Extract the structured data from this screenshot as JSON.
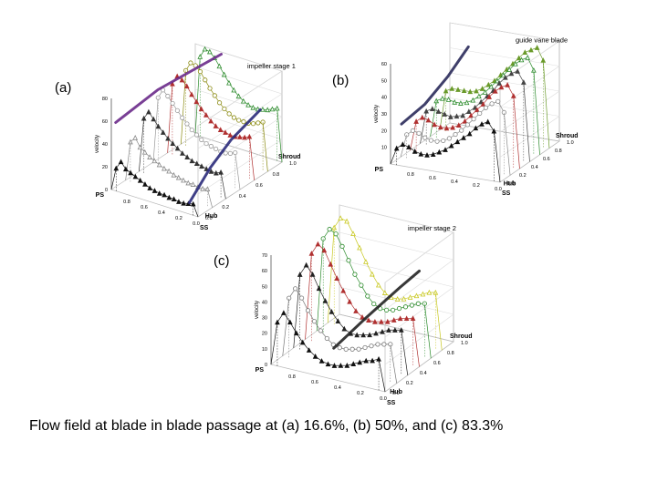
{
  "caption": "Flow field at blade in blade passage at (a) 16.6%, (b) 50%, and (c) 83.3%",
  "chart_data": [
    {
      "type": "line",
      "panel_label": "(a)",
      "title": "impeller stage 1",
      "zlabel": "velocity",
      "z_ticks": [
        "0",
        "20",
        "40",
        "60",
        "80"
      ],
      "x_ticks": [
        "0.8",
        "0.6",
        "0.4",
        "0.2",
        "0.0"
      ],
      "x_end_labels": [
        "PS",
        "SS"
      ],
      "y_ticks": [
        "1.0",
        "0.8",
        "0.6",
        "0.4",
        "0.2",
        "0.0"
      ],
      "y_end_labels": [
        "Shroud",
        "Hub"
      ],
      "zlim": [
        0,
        80
      ],
      "series": [
        {
          "depth": 0.0,
          "color": "#111111",
          "marker": "triangle",
          "values": [
            0,
            20,
            27,
            22,
            20,
            18,
            16,
            14,
            12,
            11,
            10,
            10,
            9,
            9,
            8,
            8,
            9,
            10,
            0
          ]
        },
        {
          "depth": 0.17,
          "color": "#888888",
          "marker": "triangle-open",
          "values": [
            0,
            35,
            40,
            33,
            30,
            27,
            25,
            23,
            21,
            20,
            18,
            17,
            16,
            15,
            15,
            14,
            14,
            15,
            0
          ]
        },
        {
          "depth": 0.33,
          "color": "#333333",
          "marker": "triangle",
          "values": [
            0,
            48,
            55,
            50,
            45,
            41,
            37,
            34,
            31,
            28,
            26,
            24,
            23,
            22,
            21,
            20,
            20,
            22,
            0
          ]
        },
        {
          "depth": 0.5,
          "color": "#999999",
          "marker": "circle-open",
          "values": [
            0,
            58,
            66,
            62,
            57,
            52,
            47,
            43,
            39,
            36,
            33,
            31,
            30,
            29,
            28,
            28,
            29,
            31,
            0
          ]
        },
        {
          "depth": 0.67,
          "color": "#b03030",
          "marker": "triangle",
          "values": [
            0,
            62,
            70,
            68,
            64,
            58,
            53,
            48,
            44,
            40,
            37,
            35,
            34,
            33,
            33,
            34,
            35,
            37,
            0
          ]
        },
        {
          "depth": 0.83,
          "color": "#8a8a10",
          "marker": "circle-open",
          "values": [
            0,
            66,
            74,
            73,
            69,
            63,
            57,
            52,
            47,
            43,
            40,
            38,
            37,
            37,
            37,
            38,
            40,
            42,
            0
          ]
        },
        {
          "depth": 1.0,
          "color": "#2a8a2a",
          "marker": "triangle-open",
          "values": [
            0,
            70,
            78,
            77,
            73,
            67,
            61,
            55,
            50,
            46,
            43,
            41,
            40,
            40,
            41,
            42,
            44,
            46,
            0
          ]
        }
      ],
      "highlights": [
        {
          "color": "#6a2a8a",
          "points": [
            [
              0.95,
              0.0,
              60
            ],
            [
              0.85,
              0.4,
              72
            ],
            [
              0.75,
              0.8,
              76
            ],
            [
              0.7,
              1.0,
              78
            ]
          ]
        },
        {
          "color": "#2a2a7a",
          "points": [
            [
              0.1,
              0.0,
              10
            ],
            [
              0.15,
              0.3,
              25
            ],
            [
              0.2,
              0.6,
              34
            ],
            [
              0.25,
              1.0,
              40
            ]
          ]
        }
      ]
    },
    {
      "type": "line",
      "panel_label": "(b)",
      "title": "guide vane blade",
      "zlabel": "velocity",
      "z_ticks": [
        "10",
        "20",
        "30",
        "40",
        "50",
        "60"
      ],
      "x_ticks": [
        "0.8",
        "0.6",
        "0.4",
        "0.2",
        "0.0"
      ],
      "x_end_labels": [
        "PS",
        "SS"
      ],
      "y_ticks": [
        "1.0",
        "0.8",
        "0.6",
        "0.4",
        "0.2",
        "0.0"
      ],
      "y_end_labels": [
        "Shroud",
        "Hub"
      ],
      "zlim": [
        0,
        60
      ],
      "series": [
        {
          "depth": 0.0,
          "color": "#111111",
          "marker": "triangle",
          "values": [
            0,
            10,
            13,
            12,
            10,
            9,
            9,
            10,
            12,
            14,
            17,
            20,
            23,
            26,
            30,
            33,
            35,
            30,
            0
          ]
        },
        {
          "depth": 0.17,
          "color": "#888888",
          "marker": "circle-open",
          "values": [
            0,
            14,
            17,
            16,
            14,
            13,
            13,
            14,
            16,
            19,
            22,
            26,
            30,
            34,
            38,
            41,
            43,
            37,
            0
          ]
        },
        {
          "depth": 0.33,
          "color": "#b03030",
          "marker": "triangle",
          "values": [
            0,
            18,
            21,
            20,
            18,
            17,
            17,
            18,
            20,
            23,
            27,
            31,
            35,
            40,
            44,
            47,
            49,
            43,
            0
          ]
        },
        {
          "depth": 0.5,
          "color": "#444444",
          "marker": "triangle",
          "values": [
            0,
            20,
            22,
            21,
            20,
            19,
            20,
            21,
            24,
            27,
            31,
            35,
            39,
            44,
            48,
            51,
            53,
            47,
            0
          ]
        },
        {
          "depth": 0.67,
          "color": "#2a8a2a",
          "marker": "triangle-open",
          "values": [
            0,
            22,
            24,
            24,
            23,
            23,
            24,
            26,
            29,
            32,
            36,
            40,
            44,
            48,
            52,
            55,
            57,
            50,
            0
          ]
        },
        {
          "depth": 0.83,
          "color": "#6a9a2a",
          "marker": "triangle",
          "values": [
            0,
            24,
            26,
            26,
            26,
            26,
            27,
            29,
            32,
            35,
            39,
            43,
            47,
            51,
            55,
            57,
            59,
            52,
            0
          ]
        }
      ],
      "highlights": [
        {
          "color": "#2a2a5a",
          "points": [
            [
              0.9,
              0.0,
              25
            ],
            [
              0.85,
              0.3,
              30
            ],
            [
              0.8,
              0.6,
              40
            ],
            [
              0.75,
              0.85,
              52
            ]
          ]
        }
      ]
    },
    {
      "type": "line",
      "panel_label": "(c)",
      "title": "impeller stage 2",
      "zlabel": "velocity",
      "z_ticks": [
        "0",
        "10",
        "20",
        "30",
        "40",
        "50",
        "60",
        "70"
      ],
      "x_ticks": [
        "0.8",
        "0.6",
        "0.4",
        "0.2",
        "0.0"
      ],
      "x_end_labels": [
        "PS",
        "SS"
      ],
      "y_ticks": [
        "1.0",
        "0.8",
        "0.6",
        "0.4",
        "0.2",
        "0.0"
      ],
      "y_end_labels": [
        "Shroud",
        "Hub"
      ],
      "zlim": [
        0,
        70
      ],
      "series": [
        {
          "depth": 0.0,
          "color": "#111111",
          "marker": "triangle",
          "values": [
            0,
            28,
            35,
            30,
            24,
            19,
            15,
            12,
            10,
            9,
            9,
            10,
            11,
            13,
            15,
            17,
            18,
            20,
            0
          ]
        },
        {
          "depth": 0.17,
          "color": "#777777",
          "marker": "circle-open",
          "values": [
            0,
            38,
            45,
            40,
            33,
            27,
            22,
            18,
            15,
            14,
            14,
            15,
            16,
            18,
            20,
            22,
            23,
            24,
            0
          ]
        },
        {
          "depth": 0.33,
          "color": "#222222",
          "marker": "triangle",
          "values": [
            0,
            48,
            55,
            50,
            42,
            35,
            29,
            24,
            20,
            18,
            18,
            19,
            20,
            22,
            24,
            26,
            27,
            28,
            0
          ]
        },
        {
          "depth": 0.5,
          "color": "#b03030",
          "marker": "triangle",
          "values": [
            0,
            56,
            63,
            60,
            52,
            44,
            37,
            31,
            26,
            23,
            22,
            22,
            23,
            24,
            26,
            28,
            29,
            30,
            0
          ]
        },
        {
          "depth": 0.67,
          "color": "#2a8a2a",
          "marker": "circle-open",
          "values": [
            0,
            60,
            67,
            65,
            58,
            50,
            42,
            36,
            30,
            26,
            24,
            24,
            25,
            27,
            29,
            31,
            33,
            34,
            0
          ]
        },
        {
          "depth": 0.83,
          "color": "#c8c820",
          "marker": "triangle-open",
          "values": [
            0,
            62,
            69,
            68,
            61,
            53,
            45,
            38,
            32,
            28,
            26,
            26,
            27,
            29,
            31,
            33,
            35,
            36,
            0
          ]
        }
      ],
      "highlights": [
        {
          "color": "#222222",
          "points": [
            [
              0.45,
              0.0,
              20
            ],
            [
              0.4,
              0.4,
              28
            ],
            [
              0.35,
              0.8,
              35
            ],
            [
              0.3,
              1.0,
              40
            ]
          ]
        }
      ]
    }
  ]
}
